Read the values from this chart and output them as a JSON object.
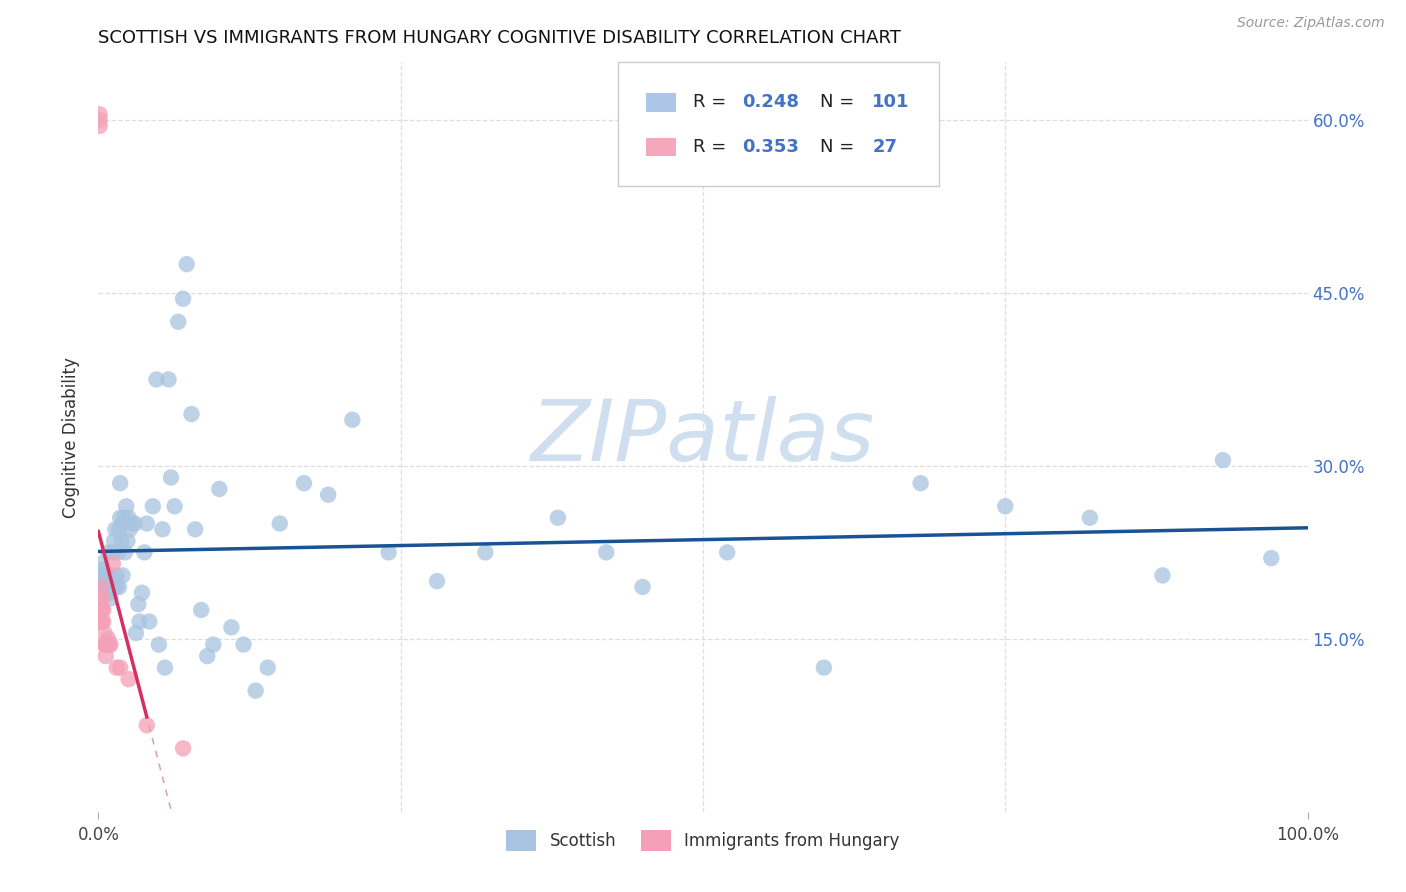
{
  "title": "SCOTTISH VS IMMIGRANTS FROM HUNGARY COGNITIVE DISABILITY CORRELATION CHART",
  "source": "Source: ZipAtlas.com",
  "ylabel": "Cognitive Disability",
  "xlim": [
    0,
    1.0
  ],
  "ylim": [
    0,
    0.65
  ],
  "ytick_labels": [
    "15.0%",
    "30.0%",
    "45.0%",
    "60.0%"
  ],
  "ytick_values": [
    0.15,
    0.3,
    0.45,
    0.6
  ],
  "scottish_R": "0.248",
  "scottish_N": "101",
  "hungary_R": "0.353",
  "hungary_N": "27",
  "scottish_dot_color": "#a8c4e0",
  "scottish_line_color": "#1a5296",
  "hungary_dot_color": "#f4a0b8",
  "hungary_line_color": "#d63060",
  "hungary_dash_color": "#e0a0b8",
  "accent_blue": "#4472c4",
  "legend_face_scottish": "#adc6e8",
  "legend_face_hungary": "#f4a8bc",
  "watermark_color": "#d0dff0",
  "grid_color": "#dedede",
  "scottish_x": [
    0.002,
    0.003,
    0.003,
    0.004,
    0.004,
    0.005,
    0.005,
    0.006,
    0.006,
    0.007,
    0.007,
    0.007,
    0.008,
    0.008,
    0.009,
    0.009,
    0.01,
    0.01,
    0.01,
    0.011,
    0.011,
    0.012,
    0.012,
    0.013,
    0.013,
    0.014,
    0.015,
    0.015,
    0.016,
    0.017,
    0.017,
    0.018,
    0.018,
    0.019,
    0.02,
    0.02,
    0.021,
    0.022,
    0.023,
    0.024,
    0.025,
    0.026,
    0.028,
    0.03,
    0.031,
    0.033,
    0.034,
    0.036,
    0.038,
    0.04,
    0.042,
    0.045,
    0.048,
    0.05,
    0.053,
    0.055,
    0.058,
    0.06,
    0.063,
    0.066,
    0.07,
    0.073,
    0.077,
    0.08,
    0.085,
    0.09,
    0.095,
    0.1,
    0.11,
    0.12,
    0.13,
    0.14,
    0.15,
    0.17,
    0.19,
    0.21,
    0.24,
    0.28,
    0.32,
    0.38,
    0.42,
    0.45,
    0.52,
    0.6,
    0.68,
    0.75,
    0.82,
    0.88,
    0.93,
    0.97
  ],
  "scottish_y": [
    0.215,
    0.205,
    0.195,
    0.21,
    0.195,
    0.2,
    0.19,
    0.205,
    0.195,
    0.205,
    0.195,
    0.2,
    0.225,
    0.195,
    0.205,
    0.19,
    0.205,
    0.195,
    0.185,
    0.2,
    0.195,
    0.195,
    0.225,
    0.235,
    0.195,
    0.245,
    0.205,
    0.195,
    0.225,
    0.245,
    0.195,
    0.285,
    0.255,
    0.235,
    0.25,
    0.205,
    0.255,
    0.225,
    0.265,
    0.235,
    0.255,
    0.245,
    0.25,
    0.25,
    0.155,
    0.18,
    0.165,
    0.19,
    0.225,
    0.25,
    0.165,
    0.265,
    0.375,
    0.145,
    0.245,
    0.125,
    0.375,
    0.29,
    0.265,
    0.425,
    0.445,
    0.475,
    0.345,
    0.245,
    0.175,
    0.135,
    0.145,
    0.28,
    0.16,
    0.145,
    0.105,
    0.125,
    0.25,
    0.285,
    0.275,
    0.34,
    0.225,
    0.2,
    0.225,
    0.255,
    0.225,
    0.195,
    0.225,
    0.125,
    0.285,
    0.265,
    0.255,
    0.205,
    0.305,
    0.22
  ],
  "hungary_x": [
    0.001,
    0.001,
    0.001,
    0.002,
    0.002,
    0.002,
    0.002,
    0.003,
    0.003,
    0.003,
    0.004,
    0.004,
    0.005,
    0.005,
    0.006,
    0.006,
    0.007,
    0.008,
    0.009,
    0.01,
    0.012,
    0.015,
    0.018,
    0.025,
    0.04,
    0.07
  ],
  "hungary_y": [
    0.6,
    0.605,
    0.595,
    0.195,
    0.185,
    0.175,
    0.165,
    0.185,
    0.175,
    0.165,
    0.175,
    0.165,
    0.155,
    0.145,
    0.145,
    0.135,
    0.145,
    0.15,
    0.145,
    0.145,
    0.215,
    0.125,
    0.125,
    0.115,
    0.075,
    0.055
  ]
}
